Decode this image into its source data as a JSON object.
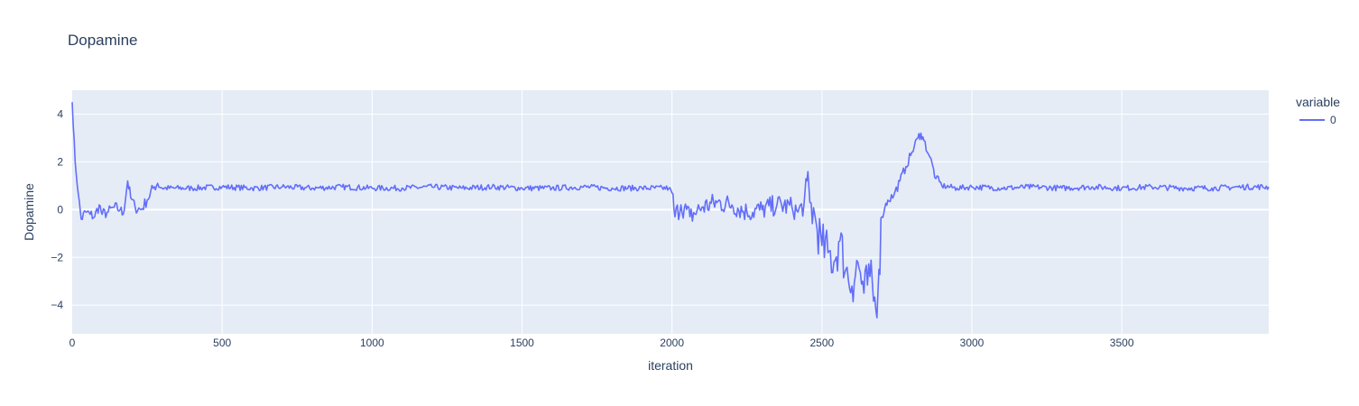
{
  "chart_data": {
    "type": "line",
    "title": "Dopamine",
    "xlabel": "iteration",
    "ylabel": "Dopamine",
    "xlim": [
      0,
      3990
    ],
    "ylim": [
      -5.2,
      5.0
    ],
    "x_ticks": [
      0,
      500,
      1000,
      1500,
      2000,
      2500,
      3000,
      3500
    ],
    "y_ticks": [
      -4,
      -2,
      0,
      2,
      4
    ],
    "y_tick_labels": [
      "−4",
      "−2",
      "0",
      "2",
      "4"
    ],
    "grid": true,
    "legend": {
      "title": "variable",
      "position": "top-right"
    },
    "colors": {
      "line": "#636efa",
      "plot_bg": "#e5ecf6",
      "grid": "#ffffff",
      "text": "#2a3f5f"
    },
    "series": [
      {
        "name": "0",
        "x": [
          0,
          10,
          20,
          30,
          45,
          60,
          75,
          90,
          100,
          120,
          140,
          160,
          170,
          185,
          195,
          210,
          230,
          250,
          270,
          285,
          300,
          400,
          500,
          600,
          700,
          800,
          900,
          1000,
          1100,
          1200,
          1300,
          1400,
          1500,
          1600,
          1700,
          1800,
          1900,
          1990,
          2000,
          2010,
          2030,
          2060,
          2100,
          2150,
          2200,
          2250,
          2300,
          2350,
          2400,
          2420,
          2440,
          2450,
          2460,
          2480,
          2500,
          2520,
          2540,
          2560,
          2580,
          2600,
          2620,
          2640,
          2660,
          2680,
          2690,
          2700,
          2710,
          2720,
          2740,
          2760,
          2780,
          2800,
          2820,
          2830,
          2840,
          2860,
          2880,
          2900,
          2950,
          3000,
          3100,
          3200,
          3300,
          3400,
          3500,
          3600,
          3700,
          3800,
          3900,
          3990
        ],
        "y": [
          4.5,
          2.0,
          0.7,
          -0.4,
          -0.1,
          -0.2,
          -0.3,
          0.2,
          -0.2,
          -0.1,
          0.1,
          0.0,
          -0.2,
          1.2,
          0.5,
          0.1,
          0.0,
          0.4,
          0.9,
          1.1,
          0.9,
          0.9,
          0.95,
          0.9,
          0.95,
          0.9,
          0.95,
          0.9,
          0.9,
          0.95,
          0.9,
          0.95,
          0.9,
          0.9,
          0.95,
          0.9,
          0.9,
          0.9,
          0.7,
          -0.3,
          0.2,
          -0.3,
          0.1,
          0.3,
          0.2,
          -0.1,
          0.0,
          0.2,
          0.1,
          -0.1,
          0.2,
          1.2,
          0.3,
          -0.5,
          -1.5,
          -1.8,
          -2.2,
          -1.3,
          -2.5,
          -3.2,
          -2.2,
          -3.5,
          -2.8,
          -4.2,
          -2.5,
          -0.3,
          0.1,
          0.4,
          0.6,
          1.2,
          1.8,
          2.4,
          3.0,
          3.2,
          2.9,
          2.2,
          1.3,
          1.0,
          0.9,
          0.95,
          0.9,
          0.95,
          0.9,
          0.95,
          0.9,
          0.95,
          0.9,
          0.9,
          0.95,
          0.95
        ]
      }
    ]
  }
}
